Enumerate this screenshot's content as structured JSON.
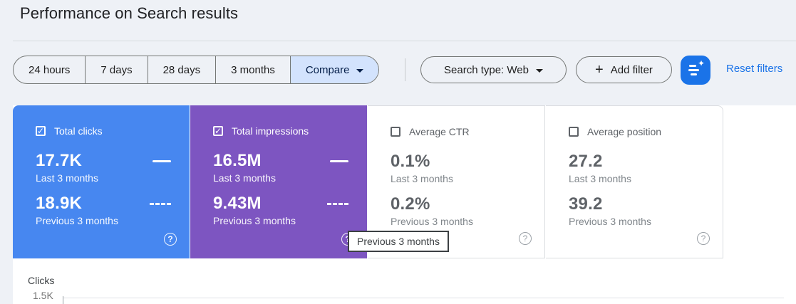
{
  "page": {
    "title": "Performance on Search results"
  },
  "toolbar": {
    "date_tabs": [
      {
        "label": "24 hours",
        "selected": false
      },
      {
        "label": "7 days",
        "selected": false
      },
      {
        "label": "28 days",
        "selected": false
      },
      {
        "label": "3 months",
        "selected": false
      },
      {
        "label": "Compare",
        "selected": true
      }
    ],
    "search_type_label": "Search type: Web",
    "add_filter_label": "Add filter",
    "reset_filters_label": "Reset filters"
  },
  "metric_cards": [
    {
      "label": "Total clicks",
      "checked": true,
      "color": "#4787f0",
      "current_value": "17.7K",
      "current_period": "Last 3 months",
      "previous_value": "18.9K",
      "previous_period": "Previous 3 months"
    },
    {
      "label": "Total impressions",
      "checked": true,
      "color": "#7d55c1",
      "current_value": "16.5M",
      "current_period": "Last 3 months",
      "previous_value": "9.43M",
      "previous_period": "Previous 3 months"
    },
    {
      "label": "Average CTR",
      "checked": false,
      "current_value": "0.1%",
      "current_period": "Last 3 months",
      "previous_value": "0.2%",
      "previous_period": "Previous 3 months"
    },
    {
      "label": "Average position",
      "checked": false,
      "current_value": "27.2",
      "current_period": "Last 3 months",
      "previous_value": "39.2",
      "previous_period": "Previous 3 months"
    }
  ],
  "tooltip": {
    "text": "Previous 3 months"
  },
  "chart": {
    "ylabel": "Clicks",
    "y_tick": "1.5K"
  },
  "icons": {
    "help": "?",
    "check": "✓",
    "plus": "+",
    "sparkle": "✦"
  },
  "colors": {
    "accent_blue": "#1a73e8",
    "clicks_card": "#4787f0",
    "impressions_card": "#7d55c1",
    "compare_selected_bg": "#d3e3fd"
  }
}
